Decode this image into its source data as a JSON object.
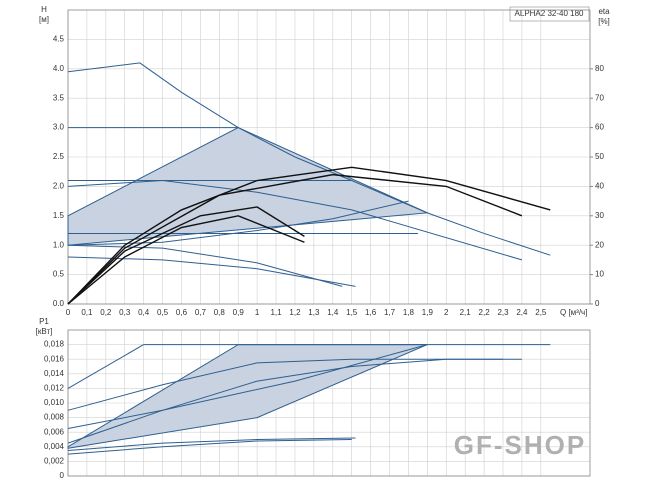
{
  "chart_data": [
    {
      "type": "line",
      "title": "ALPHA2 32-40 180",
      "y_label": "H",
      "y_unit": "[м]",
      "y2_label": "eta",
      "y2_unit": "[%]",
      "x_label": "Q [м³/ч]",
      "xlim": [
        0,
        2.76
      ],
      "ylim": [
        0,
        5
      ],
      "y2lim": [
        0,
        100
      ],
      "grid": true,
      "xtick_labels": true,
      "xticks": [
        0,
        {
          "value": 0.1,
          "label": "0,1"
        },
        {
          "value": 0.2,
          "label": "0,2"
        },
        {
          "value": 0.3,
          "label": "0,3"
        },
        {
          "value": 0.4,
          "label": "0,4"
        },
        {
          "value": 0.5,
          "label": "0,5"
        },
        {
          "value": 0.6,
          "label": "0,6"
        },
        {
          "value": 0.7,
          "label": "0,7"
        },
        {
          "value": 0.8,
          "label": "0,8"
        },
        {
          "value": 0.9,
          "label": "0,9"
        },
        1,
        {
          "value": 1.1,
          "label": "1,1"
        },
        {
          "value": 1.2,
          "label": "1,2"
        },
        {
          "value": 1.3,
          "label": "1,3"
        },
        {
          "value": 1.4,
          "label": "1,4"
        },
        {
          "value": 1.5,
          "label": "1,5"
        },
        {
          "value": 1.6,
          "label": "1,6"
        },
        {
          "value": 1.7,
          "label": "1,7"
        },
        {
          "value": 1.8,
          "label": "1,8"
        },
        {
          "value": 1.9,
          "label": "1,9"
        },
        2,
        {
          "value": 2.1,
          "label": "2,1"
        },
        {
          "value": 2.2,
          "label": "2,2"
        },
        {
          "value": 2.3,
          "label": "2,3"
        },
        {
          "value": 2.4,
          "label": "2,4"
        },
        {
          "value": 2.5,
          "label": "2,5"
        }
      ],
      "yticks": [
        {
          "value": 0,
          "label": "0.0"
        },
        0.5,
        {
          "value": 1,
          "label": "1.0"
        },
        1.5,
        {
          "value": 2,
          "label": "2.0"
        },
        2.5,
        {
          "value": 3,
          "label": "3.0"
        },
        3.5,
        {
          "value": 4,
          "label": "4.0"
        },
        4.5
      ],
      "y2ticks": [
        0,
        10,
        20,
        30,
        40,
        50,
        60,
        70,
        80
      ],
      "series": [
        {
          "color": "#2f5f8f",
          "fill": "#c8d2e0",
          "x": [
            0,
            0,
            0.9,
            1.9,
            0
          ],
          "values": [
            1.0,
            1.5,
            3.0,
            1.55,
            1.0
          ]
        },
        {
          "color": "#2f5f8f",
          "x": [
            0,
            0.38,
            0.6,
            0.9,
            1.2,
            1.5,
            1.9,
            2.2,
            2.55
          ],
          "values": [
            3.95,
            4.1,
            3.6,
            3.0,
            2.5,
            2.1,
            1.55,
            1.2,
            0.83
          ]
        },
        {
          "color": "#2f5f8f",
          "x": [
            0,
            0.9
          ],
          "values": [
            3.0,
            3.0
          ]
        },
        {
          "color": "#2f5f8f",
          "x": [
            0,
            1.5
          ],
          "values": [
            2.1,
            2.1
          ]
        },
        {
          "color": "#2f5f8f",
          "x": [
            0,
            1.85
          ],
          "values": [
            1.2,
            1.2
          ]
        },
        {
          "color": "#2f5f8f",
          "x": [
            0,
            0.5,
            1.0,
            1.5,
            2.4
          ],
          "values": [
            2.0,
            2.1,
            1.9,
            1.6,
            0.75
          ]
        },
        {
          "color": "#2f5f8f",
          "x": [
            0,
            0.5,
            1.0,
            1.52
          ],
          "values": [
            0.8,
            0.75,
            0.6,
            0.3
          ]
        },
        {
          "color": "#2f5f8f",
          "x": [
            0,
            0.5,
            1.0,
            1.45
          ],
          "values": [
            1.0,
            0.95,
            0.7,
            0.3
          ]
        },
        {
          "color": "#2f5f8f",
          "x": [
            0,
            0.5,
            1.0,
            1.4,
            1.8
          ],
          "values": [
            1.0,
            1.05,
            1.25,
            1.45,
            1.75
          ]
        },
        {
          "color": "#111111",
          "axis": "y2",
          "x": [
            0,
            0.3,
            0.6,
            1.0,
            1.5,
            2.0,
            2.55
          ],
          "values": [
            0,
            20,
            32,
            42,
            46.5,
            42,
            32
          ]
        },
        {
          "color": "#111111",
          "axis": "y2",
          "x": [
            0,
            0.3,
            0.8,
            1.4,
            2.0,
            2.4
          ],
          "values": [
            0,
            19,
            37,
            44,
            40,
            30
          ]
        },
        {
          "color": "#111111",
          "axis": "y2",
          "x": [
            0,
            0.3,
            0.7,
            1.0,
            1.25
          ],
          "values": [
            0,
            18,
            30,
            33,
            23
          ]
        },
        {
          "color": "#111111",
          "axis": "y2",
          "x": [
            0,
            0.3,
            0.6,
            0.9,
            1.25
          ],
          "values": [
            0,
            16,
            26,
            30,
            21
          ]
        }
      ]
    },
    {
      "type": "line",
      "y_label": "P1",
      "y_unit": "[кВт]",
      "xlim": [
        0,
        2.76
      ],
      "ylim": [
        0,
        0.02
      ],
      "grid": true,
      "xtick_labels": false,
      "xticks": [
        0,
        0.1,
        0.2,
        0.3,
        0.4,
        0.5,
        0.6,
        0.7,
        0.8,
        0.9,
        1,
        1.1,
        1.2,
        1.3,
        1.4,
        1.5,
        1.6,
        1.7,
        1.8,
        1.9,
        2,
        2.1,
        2.2,
        2.3,
        2.4,
        2.5
      ],
      "yticks": [
        0,
        {
          "value": 0.002,
          "label": "0,002"
        },
        {
          "value": 0.004,
          "label": "0,004"
        },
        {
          "value": 0.006,
          "label": "0,006"
        },
        {
          "value": 0.008,
          "label": "0,008"
        },
        {
          "value": 0.01,
          "label": "0,010"
        },
        {
          "value": 0.012,
          "label": "0,012"
        },
        {
          "value": 0.014,
          "label": "0,014"
        },
        {
          "value": 0.016,
          "label": "0,016"
        },
        {
          "value": 0.018,
          "label": "0,018"
        }
      ],
      "series": [
        {
          "color": "#2f5f8f",
          "fill": "#c8d2e0",
          "x": [
            0,
            0.45,
            0.9,
            1.9,
            1.0,
            0
          ],
          "values": [
            0.004,
            0.011,
            0.018,
            0.018,
            0.008,
            0.0038
          ]
        },
        {
          "color": "#2f5f8f",
          "x": [
            0.4,
            2.55
          ],
          "values": [
            0.018,
            0.018
          ]
        },
        {
          "color": "#2f5f8f",
          "x": [
            0,
            0.4
          ],
          "values": [
            0.012,
            0.018
          ]
        },
        {
          "color": "#2f5f8f",
          "x": [
            0,
            0.5,
            1.0,
            1.5,
            2.4
          ],
          "values": [
            0.009,
            0.0125,
            0.0155,
            0.016,
            0.016
          ]
        },
        {
          "color": "#2f5f8f",
          "x": [
            0,
            0.5,
            1.0,
            1.5,
            2.0,
            2.3
          ],
          "values": [
            0.0045,
            0.009,
            0.013,
            0.015,
            0.016,
            0.016
          ]
        },
        {
          "color": "#2f5f8f",
          "x": [
            0,
            0.5,
            1.2,
            1.9
          ],
          "values": [
            0.0065,
            0.009,
            0.013,
            0.018
          ]
        },
        {
          "color": "#2f5f8f",
          "x": [
            0,
            0.5,
            1.0,
            1.5
          ],
          "values": [
            0.003,
            0.004,
            0.0048,
            0.005
          ]
        },
        {
          "color": "#2f5f8f",
          "x": [
            0,
            0.5,
            1.0,
            1.52
          ],
          "values": [
            0.0035,
            0.0045,
            0.005,
            0.0052
          ]
        }
      ]
    }
  ],
  "watermark": "GF-SHOP"
}
